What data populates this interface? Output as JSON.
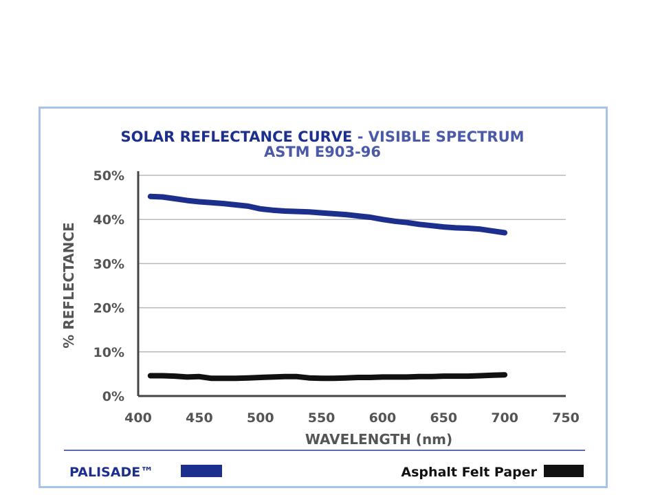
{
  "chart_data": {
    "type": "line",
    "title": "SOLAR REFLECTANCE CURVE",
    "title_separator": "-",
    "title_suffix": "VISIBLE SPECTRUM",
    "subtitle": "ASTM E903-96",
    "xlabel": "WAVELENGTH (nm)",
    "ylabel": "% REFLECTANCE",
    "xlim": [
      400,
      750
    ],
    "ylim": [
      0,
      50
    ],
    "x_ticks": [
      400,
      450,
      500,
      550,
      600,
      650,
      700,
      750
    ],
    "y_ticks": [
      0,
      10,
      20,
      30,
      40,
      50
    ],
    "y_tick_labels": [
      "0%",
      "10%",
      "20%",
      "30%",
      "40%",
      "50%"
    ],
    "grid": "horizontal",
    "legend": "bottom",
    "series": [
      {
        "name": "PALISADE™",
        "color": "#1c2f8c",
        "x": [
          410,
          420,
          430,
          440,
          450,
          460,
          470,
          480,
          490,
          500,
          510,
          520,
          530,
          540,
          550,
          560,
          570,
          580,
          590,
          600,
          610,
          620,
          630,
          640,
          650,
          660,
          670,
          680,
          690,
          700
        ],
        "y": [
          45.2,
          45.1,
          44.7,
          44.3,
          44.0,
          43.8,
          43.6,
          43.3,
          43.0,
          42.4,
          42.1,
          41.9,
          41.8,
          41.7,
          41.5,
          41.3,
          41.1,
          40.8,
          40.5,
          40.0,
          39.6,
          39.3,
          38.9,
          38.6,
          38.3,
          38.1,
          38.0,
          37.8,
          37.4,
          37.0
        ]
      },
      {
        "name": "Asphalt Felt Paper",
        "color": "#111111",
        "x": [
          410,
          420,
          430,
          440,
          450,
          460,
          470,
          480,
          490,
          500,
          510,
          520,
          530,
          540,
          550,
          560,
          570,
          580,
          590,
          600,
          610,
          620,
          630,
          640,
          650,
          660,
          670,
          680,
          690,
          700
        ],
        "y": [
          4.6,
          4.6,
          4.5,
          4.3,
          4.4,
          4.0,
          4.0,
          4.0,
          4.1,
          4.2,
          4.3,
          4.4,
          4.4,
          4.1,
          4.0,
          4.0,
          4.1,
          4.2,
          4.2,
          4.3,
          4.3,
          4.3,
          4.4,
          4.4,
          4.5,
          4.5,
          4.5,
          4.6,
          4.7,
          4.8
        ]
      }
    ]
  },
  "colors": {
    "title_primary": "#1c2f8c",
    "title_secondary": "#4a59a8",
    "panel_border": "#a7c3e8",
    "grid": "#b8b8b8",
    "axis": "#444444",
    "separator": "#5a6bb5"
  }
}
